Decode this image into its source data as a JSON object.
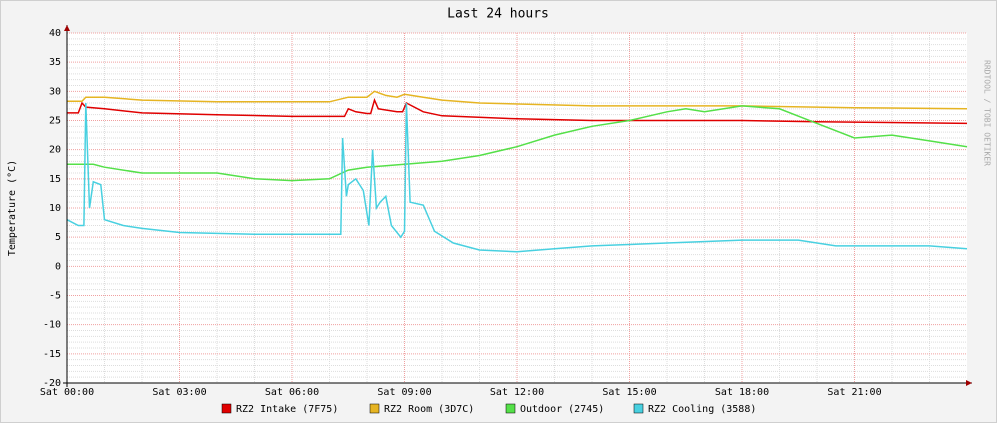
{
  "chart_data": {
    "type": "line",
    "title": "Last 24 hours",
    "y_label": "Temperature (°C)",
    "side_label": "RRDTOOL / TOBI OETIKER",
    "xlim": [
      0,
      24
    ],
    "ylim": [
      -20,
      40
    ],
    "xticks": [
      {
        "value": 0,
        "label": "Sat 00:00"
      },
      {
        "value": 3,
        "label": "Sat 03:00"
      },
      {
        "value": 6,
        "label": "Sat 06:00"
      },
      {
        "value": 9,
        "label": "Sat 09:00"
      },
      {
        "value": 12,
        "label": "Sat 12:00"
      },
      {
        "value": 15,
        "label": "Sat 15:00"
      },
      {
        "value": 18,
        "label": "Sat 18:00"
      },
      {
        "value": 21,
        "label": "Sat 21:00"
      }
    ],
    "yticks": [
      -20,
      -15,
      -10,
      -5,
      0,
      5,
      10,
      15,
      20,
      25,
      30,
      35,
      40
    ],
    "grid": true,
    "series": [
      {
        "name": "RZ2 Intake (7F75)",
        "color": "#e00000",
        "x": [
          0,
          0.3,
          0.4,
          0.5,
          1,
          2,
          4,
          6,
          7.4,
          7.5,
          7.7,
          8,
          8.1,
          8.2,
          8.3,
          8.8,
          8.95,
          9.05,
          9.5,
          10,
          12,
          14,
          18,
          20,
          24
        ],
        "values": [
          26.3,
          26.3,
          28,
          27.3,
          27,
          26.3,
          26,
          25.7,
          25.7,
          27,
          26.5,
          26.2,
          26.2,
          28.5,
          27,
          26.5,
          26.5,
          28,
          26.5,
          25.8,
          25.3,
          25,
          25,
          24.8,
          24.5
        ]
      },
      {
        "name": "RZ2 Room (3D7C)",
        "color": "#e6b422",
        "x": [
          0,
          0.4,
          0.5,
          1,
          2,
          4,
          7,
          7.5,
          8,
          8.2,
          8.5,
          8.8,
          9,
          9.5,
          10,
          11,
          14,
          18,
          21,
          24
        ],
        "values": [
          28.3,
          28.3,
          29,
          29,
          28.5,
          28.2,
          28.2,
          29,
          29,
          30,
          29.3,
          29,
          29.5,
          29,
          28.5,
          28,
          27.5,
          27.5,
          27.2,
          27
        ]
      },
      {
        "name": "Outdoor (2745)",
        "color": "#54e048",
        "x": [
          0,
          0.7,
          1,
          2,
          4,
          5,
          6,
          7,
          7.5,
          8,
          9,
          10,
          11,
          12,
          13,
          14,
          15,
          16,
          16.5,
          17,
          18,
          19,
          20,
          21,
          22,
          23,
          24
        ],
        "values": [
          17.5,
          17.5,
          17,
          16,
          16,
          15,
          14.7,
          15,
          16.5,
          17,
          17.5,
          18,
          19,
          20.5,
          22.5,
          24,
          25,
          26.5,
          27,
          26.5,
          27.5,
          27,
          24.5,
          22,
          22.5,
          21.5,
          20.5
        ]
      },
      {
        "name": "RZ2 Cooling (3588)",
        "color": "#48d0e0",
        "x": [
          0,
          0.3,
          0.45,
          0.5,
          0.6,
          0.7,
          0.9,
          1,
          1.5,
          2,
          3,
          5,
          7.3,
          7.35,
          7.45,
          7.5,
          7.7,
          7.9,
          8.05,
          8.15,
          8.25,
          8.35,
          8.5,
          8.65,
          8.9,
          9.0,
          9.05,
          9.15,
          9.5,
          9.8,
          10.3,
          11,
          12,
          13,
          14,
          16,
          18,
          19.5,
          20.5,
          23,
          24
        ],
        "values": [
          8,
          7,
          7,
          28,
          10,
          14.5,
          14,
          8,
          7,
          6.5,
          5.8,
          5.5,
          5.5,
          22,
          12,
          14,
          15,
          13,
          7,
          20,
          10,
          11,
          12,
          7,
          5,
          6,
          28,
          11,
          10.5,
          6,
          4,
          2.8,
          2.5,
          3,
          3.5,
          4,
          4.5,
          4.5,
          3.5,
          3.5,
          3
        ]
      }
    ]
  }
}
